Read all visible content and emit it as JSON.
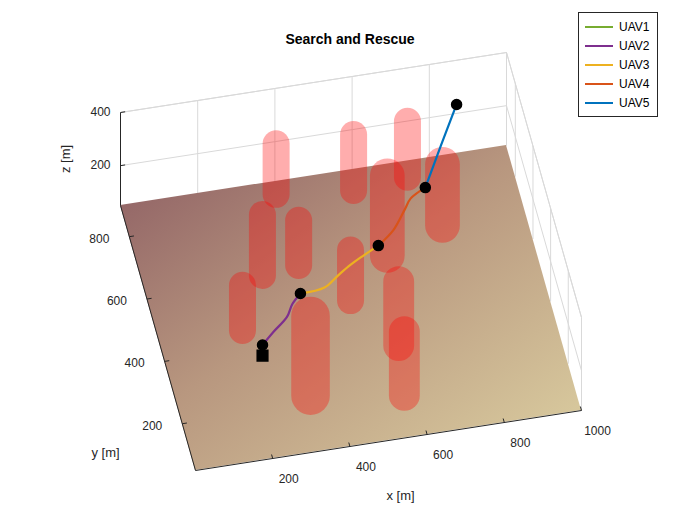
{
  "chart_data": {
    "type": "line3d",
    "title": "Search and Rescue",
    "x_label": "x [m]",
    "y_label": "y [m]",
    "z_label": "z [m]",
    "xlim": [
      0,
      1000
    ],
    "ylim": [
      50,
      900
    ],
    "zlim": [
      50,
      400
    ],
    "xticks": [
      200,
      400,
      600,
      800,
      1000
    ],
    "yticks": [
      200,
      400,
      600,
      800
    ],
    "zticks": [
      200,
      400
    ],
    "grid": true,
    "legend": "northeast",
    "series": [
      {
        "name": "UAV1",
        "color": "#77ac30",
        "x": [
          247,
          247
        ],
        "y": [
          371,
          371
        ],
        "z": [
          50,
          90
        ]
      },
      {
        "name": "UAV2",
        "color": "#7e2f8e",
        "x": [
          247,
          280,
          320,
          340,
          366
        ],
        "y": [
          371,
          390,
          413,
          441,
          462
        ],
        "z": [
          90,
          110,
          130,
          140,
          150
        ]
      },
      {
        "name": "UAV3",
        "color": "#edb120",
        "x": [
          366,
          430,
          470,
          510,
          550,
          593
        ],
        "y": [
          462,
          469,
          498,
          526,
          549,
          572
        ],
        "z": [
          150,
          150,
          150,
          150,
          150,
          150
        ]
      },
      {
        "name": "UAV4",
        "color": "#d95319",
        "x": [
          593,
          640,
          680,
          700,
          741
        ],
        "y": [
          572,
          605,
          651,
          673,
          687
        ],
        "z": [
          150,
          160,
          175,
          185,
          200
        ]
      },
      {
        "name": "UAV5",
        "color": "#0072bd",
        "x": [
          741,
          795,
          849
        ],
        "y": [
          687,
          747,
          805
        ],
        "z": [
          200,
          275,
          350
        ]
      }
    ],
    "waypoints": {
      "x": [
        247,
        366,
        593,
        741,
        849
      ],
      "y": [
        371,
        462,
        572,
        687,
        805
      ],
      "z": [
        90,
        150,
        150,
        200,
        350
      ],
      "color": "#000000",
      "marker": "circle"
    },
    "start": {
      "x": 247,
      "y": 371,
      "z": 50,
      "color": "#000000",
      "marker": "square"
    },
    "no_fly_zones": {
      "x": [
        394,
        589,
        732,
        627,
        785,
        303,
        400,
        504,
        215,
        338,
        592,
        571
      ],
      "y": [
        860,
        835,
        850,
        619,
        685,
        617,
        631,
        498,
        458,
        225,
        337,
        181
      ],
      "radius": [
        35,
        35,
        35,
        45,
        45,
        35,
        35,
        35,
        35,
        50,
        40,
        40
      ],
      "height": [
        190,
        210,
        210,
        300,
        230,
        230,
        170,
        190,
        170,
        300,
        240,
        240
      ],
      "color": "#ff0000"
    }
  }
}
